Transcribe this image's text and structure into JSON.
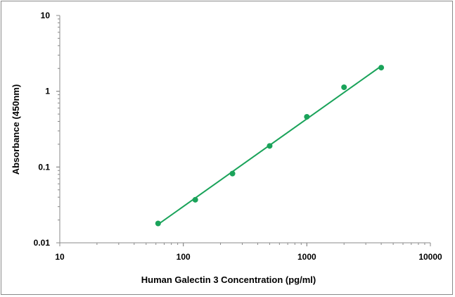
{
  "chart_data": {
    "type": "scatter",
    "title": "",
    "xlabel": "Human Galectin 3 Concentration (pg/ml)",
    "ylabel": "Absorbance (450nm)",
    "x_scale": "log",
    "y_scale": "log",
    "xlim": [
      10,
      10000
    ],
    "ylim": [
      0.01,
      10
    ],
    "x_ticks": [
      "10",
      "100",
      "1000",
      "10000"
    ],
    "y_ticks": [
      "0.01",
      "0.1",
      "1",
      "10"
    ],
    "grid": false,
    "legend": "none",
    "series": [
      {
        "points": [
          {
            "x": 62.5,
            "y": 0.018
          },
          {
            "x": 125,
            "y": 0.037
          },
          {
            "x": 250,
            "y": 0.082
          },
          {
            "x": 500,
            "y": 0.19
          },
          {
            "x": 1000,
            "y": 0.46
          },
          {
            "x": 2000,
            "y": 1.13
          },
          {
            "x": 4000,
            "y": 2.05
          }
        ],
        "trendline": {
          "x_start": 62.5,
          "y_start": 0.0175,
          "x_end": 4000,
          "y_end": 2.15
        },
        "color": "#1aa35a"
      }
    ]
  }
}
